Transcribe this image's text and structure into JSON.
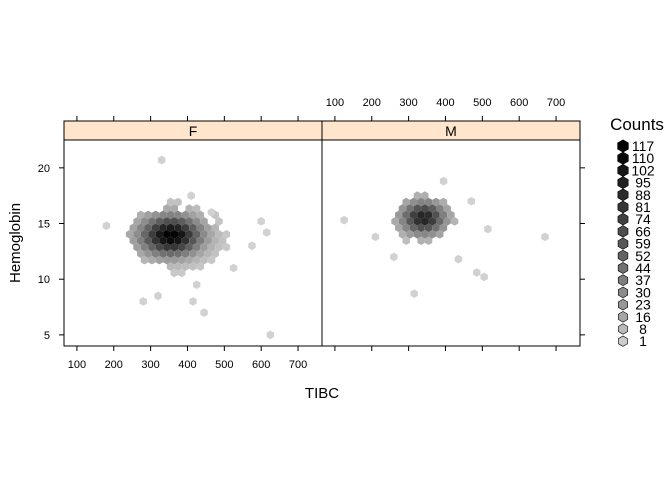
{
  "chart_data": {
    "type": "hexbin",
    "xlabel": "TIBC",
    "ylabel": "Hemoglobin",
    "xlim": [
      65,
      765
    ],
    "ylim": [
      4,
      22.5
    ],
    "x_ticks": [
      100,
      200,
      300,
      400,
      500,
      600,
      700
    ],
    "y_ticks": [
      5,
      10,
      15,
      20
    ],
    "panels": [
      {
        "strip": "F",
        "core": {
          "cx": 355,
          "cy": 13.9,
          "sx": 55,
          "sy": 1.2,
          "peak": 117
        },
        "outer": {
          "cx": 380,
          "cy": 13.6,
          "sx": 95,
          "sy": 2.2
        },
        "points": [
          [
            330,
            20.7
          ],
          [
            625,
            5.0
          ],
          [
            445,
            7.0
          ],
          [
            415,
            8.0
          ],
          [
            425,
            9.5
          ],
          [
            280,
            8.0
          ],
          [
            320,
            8.5
          ],
          [
            180,
            14.8
          ],
          [
            465,
            16.0
          ],
          [
            615,
            14.2
          ],
          [
            600,
            15.2
          ],
          [
            575,
            13.0
          ],
          [
            525,
            11.0
          ],
          [
            410,
            17.5
          ]
        ]
      },
      {
        "strip": "M",
        "core": {
          "cx": 340,
          "cy": 15.5,
          "sx": 40,
          "sy": 1.0,
          "peak": 95
        },
        "outer": {
          "cx": 340,
          "cy": 15.3,
          "sx": 60,
          "sy": 1.5
        },
        "points": [
          [
            315,
            8.7
          ],
          [
            125,
            15.3
          ],
          [
            210,
            13.8
          ],
          [
            435,
            11.8
          ],
          [
            505,
            10.2
          ],
          [
            485,
            10.6
          ],
          [
            470,
            17.0
          ],
          [
            515,
            14.5
          ],
          [
            670,
            13.8
          ],
          [
            260,
            12.0
          ],
          [
            395,
            18.8
          ]
        ]
      }
    ],
    "legend": {
      "title": "Counts",
      "values": [
        "117",
        "110",
        "102",
        "95",
        "88",
        "81",
        "74",
        "66",
        "59",
        "52",
        "44",
        "37",
        "30",
        "23",
        "16",
        "8",
        "1"
      ]
    }
  },
  "colors": {
    "strip_fill": "#ffe5cc",
    "hex_light": "#d1d1d1",
    "hex_dark": "#000000"
  }
}
